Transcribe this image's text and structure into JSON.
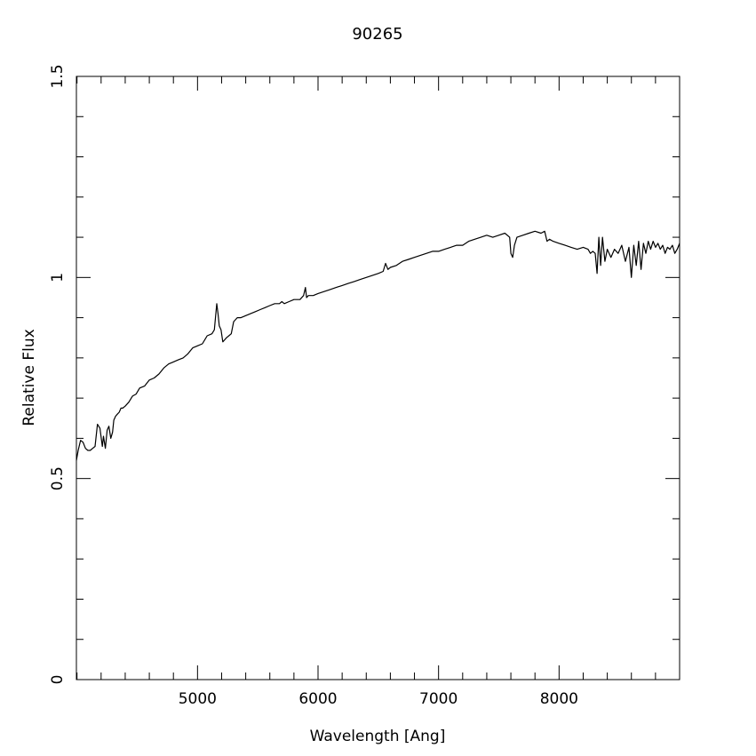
{
  "chart_data": {
    "type": "line",
    "title": "90265",
    "xlabel": "Wavelength [Ang]",
    "ylabel": "Relative Flux",
    "xlim": [
      3995,
      9000
    ],
    "ylim": [
      0,
      1.5
    ],
    "x_ticks_major": [
      5000,
      6000,
      7000,
      8000
    ],
    "x_tick_labels": [
      "5000",
      "6000",
      "7000",
      "8000"
    ],
    "x_ticks_minor_step": 200,
    "y_ticks_major": [
      0,
      0.5,
      1,
      1.5
    ],
    "y_tick_labels": [
      "0",
      "0.5",
      "1",
      "1.5"
    ],
    "y_ticks_minor_step": 0.1,
    "grid": false,
    "line_color": "#000000",
    "series": [
      {
        "x": [
          3995,
          4010,
          4030,
          4050,
          4070,
          4090,
          4110,
          4130,
          4150,
          4170,
          4190,
          4210,
          4220,
          4235,
          4250,
          4265,
          4280,
          4295,
          4305,
          4320,
          4335,
          4350,
          4365,
          4380,
          4400,
          4430,
          4460,
          4490,
          4520,
          4560,
          4600,
          4640,
          4680,
          4720,
          4760,
          4800,
          4840,
          4880,
          4920,
          4960,
          5000,
          5040,
          5080,
          5120,
          5140,
          5160,
          5170,
          5180,
          5195,
          5210,
          5225,
          5240,
          5260,
          5280,
          5300,
          5330,
          5360,
          5400,
          5440,
          5480,
          5520,
          5560,
          5600,
          5640,
          5680,
          5700,
          5720,
          5760,
          5800,
          5850,
          5880,
          5895,
          5905,
          5920,
          5960,
          6000,
          6050,
          6100,
          6150,
          6200,
          6250,
          6300,
          6350,
          6400,
          6450,
          6500,
          6540,
          6560,
          6580,
          6600,
          6650,
          6700,
          6750,
          6800,
          6850,
          6900,
          6950,
          7000,
          7050,
          7100,
          7150,
          7200,
          7250,
          7300,
          7350,
          7400,
          7450,
          7500,
          7550,
          7590,
          7600,
          7615,
          7630,
          7650,
          7700,
          7750,
          7800,
          7850,
          7880,
          7900,
          7920,
          7950,
          8000,
          8050,
          8100,
          8150,
          8200,
          8240,
          8260,
          8280,
          8300,
          8315,
          8330,
          8345,
          8360,
          8380,
          8400,
          8430,
          8460,
          8490,
          8520,
          8550,
          8580,
          8600,
          8620,
          8640,
          8660,
          8680,
          8700,
          8720,
          8740,
          8760,
          8780,
          8800,
          8820,
          8840,
          8860,
          8880,
          8900,
          8920,
          8940,
          8960,
          8980,
          9000
        ],
        "y": [
          0.545,
          0.57,
          0.595,
          0.59,
          0.575,
          0.57,
          0.57,
          0.575,
          0.58,
          0.635,
          0.625,
          0.58,
          0.605,
          0.575,
          0.62,
          0.63,
          0.6,
          0.615,
          0.645,
          0.655,
          0.66,
          0.665,
          0.675,
          0.675,
          0.68,
          0.69,
          0.705,
          0.71,
          0.725,
          0.73,
          0.745,
          0.75,
          0.76,
          0.775,
          0.785,
          0.79,
          0.795,
          0.8,
          0.81,
          0.825,
          0.83,
          0.835,
          0.855,
          0.86,
          0.87,
          0.935,
          0.91,
          0.88,
          0.87,
          0.84,
          0.845,
          0.85,
          0.855,
          0.86,
          0.89,
          0.9,
          0.9,
          0.905,
          0.91,
          0.915,
          0.92,
          0.925,
          0.93,
          0.935,
          0.935,
          0.94,
          0.935,
          0.94,
          0.945,
          0.945,
          0.955,
          0.975,
          0.95,
          0.955,
          0.955,
          0.96,
          0.965,
          0.97,
          0.975,
          0.98,
          0.985,
          0.99,
          0.995,
          1.0,
          1.005,
          1.01,
          1.015,
          1.035,
          1.02,
          1.025,
          1.03,
          1.04,
          1.045,
          1.05,
          1.055,
          1.06,
          1.065,
          1.065,
          1.07,
          1.075,
          1.08,
          1.08,
          1.09,
          1.095,
          1.1,
          1.105,
          1.1,
          1.105,
          1.11,
          1.1,
          1.06,
          1.05,
          1.08,
          1.1,
          1.105,
          1.11,
          1.115,
          1.11,
          1.115,
          1.09,
          1.095,
          1.09,
          1.085,
          1.08,
          1.075,
          1.07,
          1.075,
          1.07,
          1.06,
          1.065,
          1.06,
          1.01,
          1.1,
          1.03,
          1.1,
          1.04,
          1.07,
          1.05,
          1.07,
          1.06,
          1.08,
          1.04,
          1.075,
          1.0,
          1.08,
          1.03,
          1.09,
          1.02,
          1.085,
          1.06,
          1.09,
          1.07,
          1.09,
          1.075,
          1.085,
          1.07,
          1.08,
          1.06,
          1.075,
          1.07,
          1.08,
          1.06,
          1.07,
          1.085
        ]
      }
    ]
  }
}
